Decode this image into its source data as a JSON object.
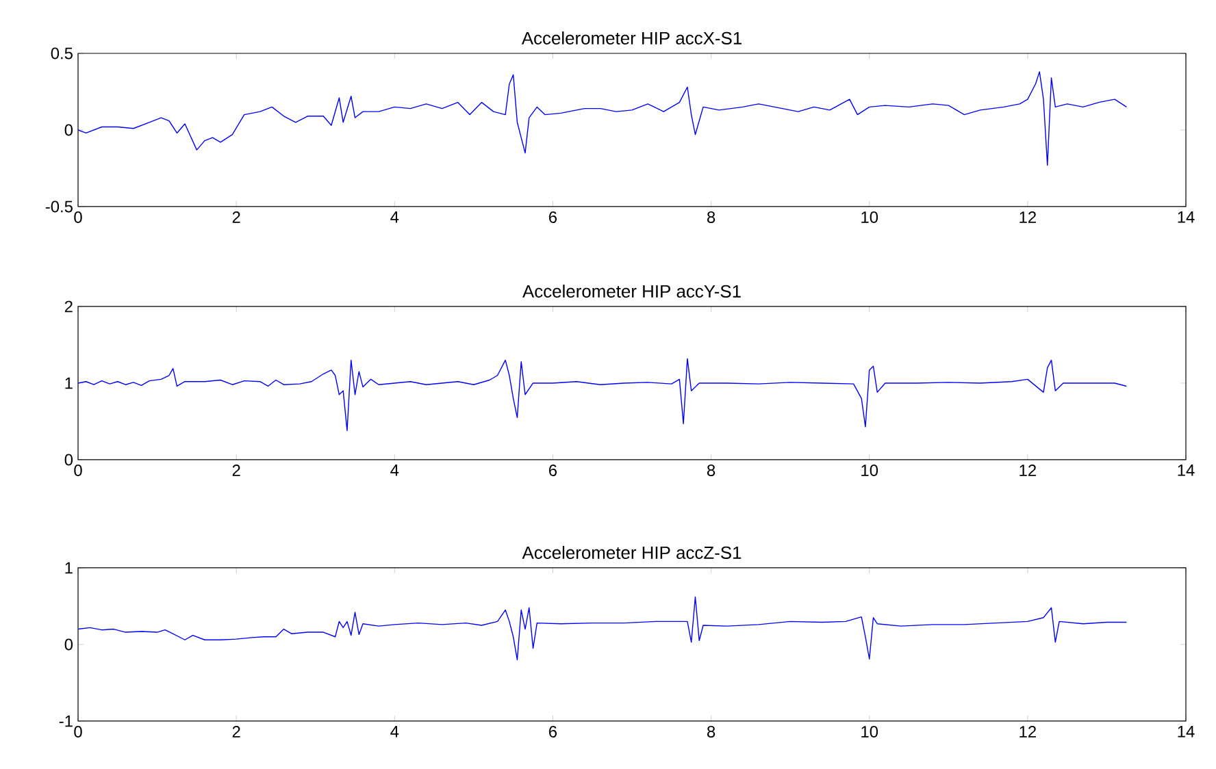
{
  "chart_data": [
    {
      "type": "line",
      "title": "Accelerometer HIP accX-S1",
      "color": "#0000ff",
      "xlim": [
        0,
        14
      ],
      "xticks": [
        0,
        2,
        4,
        6,
        8,
        10,
        12,
        14
      ],
      "ylim": [
        -0.5,
        0.5
      ],
      "yticks": [
        -0.5,
        0,
        0.5
      ],
      "x": [
        0,
        0.1,
        0.3,
        0.5,
        0.7,
        0.9,
        1.05,
        1.15,
        1.25,
        1.35,
        1.5,
        1.6,
        1.7,
        1.8,
        1.95,
        2.1,
        2.3,
        2.45,
        2.6,
        2.75,
        2.9,
        3.1,
        3.2,
        3.3,
        3.35,
        3.45,
        3.5,
        3.6,
        3.8,
        4.0,
        4.2,
        4.4,
        4.6,
        4.8,
        4.95,
        5.1,
        5.25,
        5.4,
        5.45,
        5.5,
        5.55,
        5.65,
        5.7,
        5.8,
        5.9,
        6.1,
        6.4,
        6.6,
        6.8,
        7.0,
        7.2,
        7.4,
        7.6,
        7.7,
        7.75,
        7.8,
        7.9,
        8.1,
        8.4,
        8.6,
        8.9,
        9.1,
        9.3,
        9.5,
        9.75,
        9.85,
        10.0,
        10.2,
        10.5,
        10.8,
        11.0,
        11.2,
        11.4,
        11.7,
        11.9,
        12.0,
        12.1,
        12.15,
        12.2,
        12.25,
        12.3,
        12.35,
        12.5,
        12.7,
        12.9,
        13.1,
        13.25
      ],
      "values": [
        0,
        -0.02,
        0.02,
        0.02,
        0.01,
        0.05,
        0.08,
        0.06,
        -0.02,
        0.04,
        -0.13,
        -0.07,
        -0.05,
        -0.08,
        -0.03,
        0.1,
        0.12,
        0.15,
        0.09,
        0.05,
        0.09,
        0.09,
        0.03,
        0.21,
        0.05,
        0.22,
        0.08,
        0.12,
        0.12,
        0.15,
        0.14,
        0.17,
        0.14,
        0.18,
        0.1,
        0.18,
        0.12,
        0.1,
        0.3,
        0.36,
        0.05,
        -0.15,
        0.08,
        0.15,
        0.1,
        0.11,
        0.14,
        0.14,
        0.12,
        0.13,
        0.17,
        0.12,
        0.18,
        0.28,
        0.1,
        -0.03,
        0.15,
        0.13,
        0.15,
        0.17,
        0.14,
        0.12,
        0.15,
        0.13,
        0.2,
        0.1,
        0.15,
        0.16,
        0.15,
        0.17,
        0.16,
        0.1,
        0.13,
        0.15,
        0.17,
        0.2,
        0.3,
        0.38,
        0.2,
        -0.23,
        0.34,
        0.15,
        0.17,
        0.15,
        0.18,
        0.2,
        0.15
      ]
    },
    {
      "type": "line",
      "title": "Accelerometer HIP accY-S1",
      "color": "#0000ff",
      "xlim": [
        0,
        14
      ],
      "xticks": [
        0,
        2,
        4,
        6,
        8,
        10,
        12,
        14
      ],
      "ylim": [
        0,
        2
      ],
      "yticks": [
        0,
        1,
        2
      ],
      "x": [
        0,
        0.1,
        0.2,
        0.3,
        0.4,
        0.5,
        0.6,
        0.7,
        0.8,
        0.9,
        1.05,
        1.15,
        1.2,
        1.25,
        1.35,
        1.6,
        1.8,
        1.95,
        2.1,
        2.3,
        2.4,
        2.5,
        2.6,
        2.8,
        2.95,
        3.1,
        3.2,
        3.25,
        3.3,
        3.35,
        3.4,
        3.45,
        3.5,
        3.55,
        3.6,
        3.7,
        3.8,
        4.0,
        4.2,
        4.4,
        4.6,
        4.8,
        5.0,
        5.2,
        5.3,
        5.4,
        5.45,
        5.5,
        5.55,
        5.6,
        5.65,
        5.75,
        6.0,
        6.3,
        6.6,
        6.9,
        7.2,
        7.5,
        7.6,
        7.65,
        7.7,
        7.75,
        7.85,
        8.2,
        8.6,
        9.0,
        9.4,
        9.8,
        9.9,
        9.95,
        10.0,
        10.05,
        10.1,
        10.2,
        10.6,
        11.0,
        11.4,
        11.8,
        12.0,
        12.2,
        12.25,
        12.3,
        12.35,
        12.45,
        12.8,
        13.1,
        13.25
      ],
      "values": [
        1.0,
        1.02,
        0.98,
        1.03,
        0.99,
        1.02,
        0.98,
        1.01,
        0.97,
        1.03,
        1.05,
        1.1,
        1.19,
        0.96,
        1.02,
        1.02,
        1.04,
        0.98,
        1.03,
        1.02,
        0.96,
        1.04,
        0.98,
        0.99,
        1.02,
        1.12,
        1.17,
        1.1,
        0.85,
        0.9,
        0.38,
        1.3,
        0.85,
        1.15,
        0.95,
        1.05,
        0.98,
        1.0,
        1.02,
        0.98,
        1.0,
        1.02,
        0.98,
        1.04,
        1.1,
        1.3,
        1.1,
        0.8,
        0.55,
        1.28,
        0.85,
        1.0,
        1.0,
        1.02,
        0.98,
        1.0,
        1.01,
        0.99,
        1.05,
        0.47,
        1.32,
        0.9,
        1.0,
        1.0,
        0.99,
        1.01,
        1.0,
        0.99,
        0.8,
        0.43,
        1.17,
        1.22,
        0.88,
        1.0,
        1.0,
        1.01,
        1.0,
        1.02,
        1.05,
        0.88,
        1.2,
        1.3,
        0.9,
        1.0,
        1.0,
        1.0,
        0.96
      ]
    },
    {
      "type": "line",
      "title": "Accelerometer HIP accZ-S1",
      "color": "#0000ff",
      "xlim": [
        0,
        14
      ],
      "xticks": [
        0,
        2,
        4,
        6,
        8,
        10,
        12,
        14
      ],
      "ylim": [
        -1,
        1
      ],
      "yticks": [
        -1,
        0,
        1
      ],
      "x": [
        0,
        0.15,
        0.3,
        0.45,
        0.6,
        0.8,
        1.0,
        1.1,
        1.2,
        1.35,
        1.45,
        1.6,
        1.8,
        2.0,
        2.2,
        2.35,
        2.5,
        2.6,
        2.7,
        2.9,
        3.1,
        3.25,
        3.3,
        3.35,
        3.4,
        3.45,
        3.5,
        3.55,
        3.6,
        3.8,
        4.0,
        4.3,
        4.6,
        4.9,
        5.1,
        5.3,
        5.4,
        5.45,
        5.5,
        5.55,
        5.6,
        5.65,
        5.7,
        5.75,
        5.8,
        6.1,
        6.5,
        6.9,
        7.3,
        7.6,
        7.7,
        7.75,
        7.8,
        7.85,
        7.9,
        8.2,
        8.6,
        9.0,
        9.4,
        9.7,
        9.9,
        9.95,
        10.0,
        10.05,
        10.1,
        10.4,
        10.8,
        11.2,
        11.6,
        12.0,
        12.2,
        12.3,
        12.35,
        12.4,
        12.7,
        13.0,
        13.25
      ],
      "values": [
        0.2,
        0.22,
        0.19,
        0.2,
        0.16,
        0.17,
        0.16,
        0.19,
        0.14,
        0.06,
        0.12,
        0.06,
        0.06,
        0.07,
        0.09,
        0.1,
        0.1,
        0.2,
        0.14,
        0.16,
        0.16,
        0.1,
        0.3,
        0.22,
        0.3,
        0.12,
        0.42,
        0.13,
        0.27,
        0.24,
        0.26,
        0.28,
        0.26,
        0.28,
        0.25,
        0.3,
        0.45,
        0.3,
        0.1,
        -0.2,
        0.45,
        0.2,
        0.48,
        -0.05,
        0.28,
        0.27,
        0.28,
        0.28,
        0.3,
        0.3,
        0.3,
        0.03,
        0.62,
        0.05,
        0.25,
        0.24,
        0.26,
        0.3,
        0.29,
        0.3,
        0.36,
        0.1,
        -0.19,
        0.35,
        0.27,
        0.24,
        0.26,
        0.26,
        0.28,
        0.3,
        0.35,
        0.48,
        0.03,
        0.3,
        0.27,
        0.29,
        0.29
      ]
    }
  ]
}
